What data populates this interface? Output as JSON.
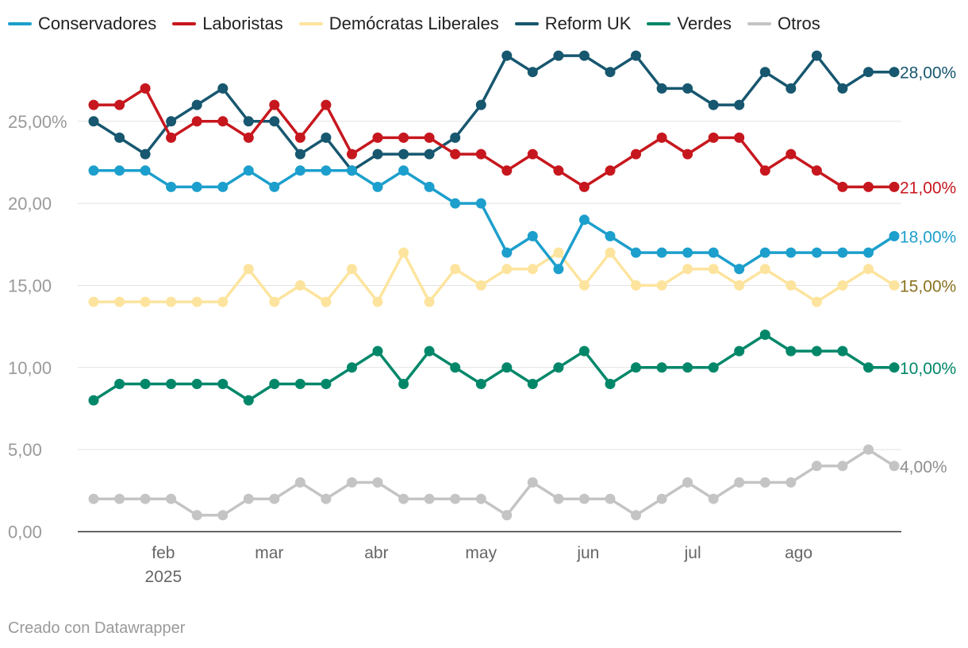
{
  "chart_data": {
    "type": "line",
    "title": "",
    "xlabel": "",
    "ylabel": "",
    "ylim": [
      0,
      30
    ],
    "y_ticks": [
      "0,00",
      "5,00",
      "10,00",
      "15,00",
      "20,00",
      "25,00%"
    ],
    "y_tick_values": [
      0,
      5,
      10,
      15,
      20,
      25
    ],
    "x_ticks": [
      {
        "label": "feb",
        "sublabel": "2025",
        "index": 2.7
      },
      {
        "label": "mar",
        "sublabel": "",
        "index": 6.8
      },
      {
        "label": "abr",
        "sublabel": "",
        "index": 10.95
      },
      {
        "label": "may",
        "sublabel": "",
        "index": 15.0
      },
      {
        "label": "jun",
        "sublabel": "",
        "index": 19.15
      },
      {
        "label": "jul",
        "sublabel": "",
        "index": 23.2
      },
      {
        "label": "ago",
        "sublabel": "",
        "index": 27.3
      }
    ],
    "legend_position": "top-left",
    "grid": true,
    "series": [
      {
        "name": "Conservadores",
        "color": "#1c9fcc",
        "end_label": "18,00%",
        "end_label_color": "#1c9fcc",
        "values": [
          22,
          22,
          22,
          21,
          21,
          21,
          22,
          21,
          22,
          22,
          22,
          21,
          22,
          21,
          20,
          20,
          17,
          18,
          16,
          19,
          18,
          17,
          17,
          17,
          17,
          16,
          17,
          17,
          17,
          17,
          17,
          18
        ]
      },
      {
        "name": "Laboristas",
        "color": "#c7171e",
        "end_label": "21,00%",
        "end_label_color": "#c7171e",
        "values": [
          26,
          26,
          27,
          24,
          25,
          25,
          24,
          26,
          24,
          26,
          23,
          24,
          24,
          24,
          23,
          23,
          22,
          23,
          22,
          21,
          22,
          23,
          24,
          23,
          24,
          24,
          22,
          23,
          22,
          21,
          21,
          21
        ]
      },
      {
        "name": "Demócratas Liberales",
        "color": "#fde49e",
        "end_label": "15,00%",
        "end_label_color": "#8a7320",
        "values": [
          14,
          14,
          14,
          14,
          14,
          14,
          16,
          14,
          15,
          14,
          16,
          14,
          17,
          14,
          16,
          15,
          16,
          16,
          17,
          15,
          17,
          15,
          15,
          16,
          16,
          15,
          16,
          15,
          14,
          15,
          16,
          15
        ]
      },
      {
        "name": "Reform UK",
        "color": "#17576f",
        "end_label": "28,00%",
        "end_label_color": "#17576f",
        "values": [
          25,
          24,
          23,
          25,
          26,
          27,
          25,
          25,
          23,
          24,
          22,
          23,
          23,
          23,
          24,
          26,
          29,
          28,
          29,
          29,
          28,
          29,
          27,
          27,
          26,
          26,
          28,
          27,
          29,
          27,
          28,
          28
        ]
      },
      {
        "name": "Verdes",
        "color": "#008769",
        "end_label": "10,00%",
        "end_label_color": "#008769",
        "values": [
          8,
          9,
          9,
          9,
          9,
          9,
          8,
          9,
          9,
          9,
          10,
          11,
          9,
          11,
          10,
          9,
          10,
          9,
          10,
          11,
          9,
          10,
          10,
          10,
          10,
          11,
          12,
          11,
          11,
          11,
          10,
          10
        ]
      },
      {
        "name": "Otros",
        "color": "#c4c4c4",
        "end_label": "4,00%",
        "end_label_color": "#8e8e8e",
        "values": [
          2,
          2,
          2,
          2,
          1,
          1,
          2,
          2,
          3,
          2,
          3,
          3,
          2,
          2,
          2,
          2,
          1,
          3,
          2,
          2,
          2,
          1,
          2,
          3,
          2,
          3,
          3,
          3,
          4,
          4,
          5,
          4
        ]
      }
    ]
  },
  "footer": {
    "credit": "Creado con Datawrapper"
  }
}
